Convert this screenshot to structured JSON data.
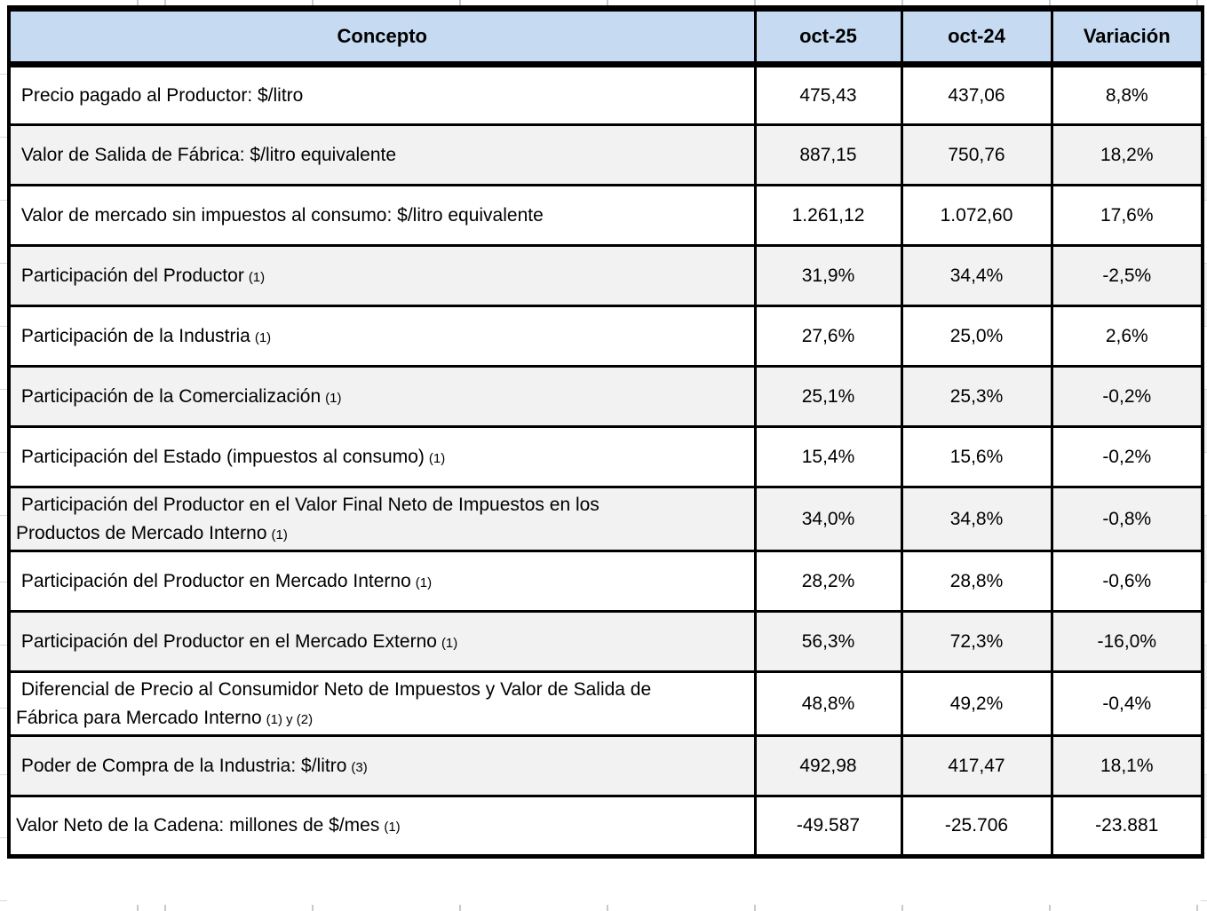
{
  "table": {
    "columns": {
      "concepto": "Concepto",
      "oct25": "oct-25",
      "oct24": "oct-24",
      "variacion": "Variación"
    },
    "rows": [
      {
        "concepto": " Precio pagado al Productor: $/litro",
        "note": "",
        "oct25": "475,43",
        "oct24": "437,06",
        "variacion": "8,8%"
      },
      {
        "concepto": " Valor de Salida de Fábrica: $/litro equivalente",
        "note": "",
        "oct25": "887,15",
        "oct24": "750,76",
        "variacion": "18,2%"
      },
      {
        "concepto": " Valor de mercado sin impuestos al consumo: $/litro equivalente",
        "note": "",
        "oct25": "1.261,12",
        "oct24": "1.072,60",
        "variacion": "17,6%"
      },
      {
        "concepto": " Participación del Productor",
        "note": "(1)",
        "oct25": "31,9%",
        "oct24": "34,4%",
        "variacion": "-2,5%"
      },
      {
        "concepto": " Participación de la Industria",
        "note": "(1)",
        "oct25": "27,6%",
        "oct24": "25,0%",
        "variacion": "2,6%"
      },
      {
        "concepto": " Participación de la Comercialización",
        "note": "(1)",
        "oct25": "25,1%",
        "oct24": "25,3%",
        "variacion": "-0,2%"
      },
      {
        "concepto": " Participación del Estado (impuestos al consumo)",
        "note": "(1)",
        "oct25": "15,4%",
        "oct24": "15,6%",
        "variacion": "-0,2%"
      },
      {
        "concepto": " Participación del Productor en el Valor Final Neto de Impuestos en los\nProductos de Mercado Interno",
        "note": "(1)",
        "oct25": "34,0%",
        "oct24": "34,8%",
        "variacion": "-0,8%"
      },
      {
        "concepto": " Participación del Productor en Mercado Interno",
        "note": "(1)",
        "oct25": "28,2%",
        "oct24": "28,8%",
        "variacion": "-0,6%"
      },
      {
        "concepto": " Participación del Productor en el Mercado Externo",
        "note": "(1)",
        "oct25": "56,3%",
        "oct24": "72,3%",
        "variacion": "-16,0%"
      },
      {
        "concepto": " Diferencial de Precio al Consumidor Neto de Impuestos y Valor de Salida de\nFábrica para Mercado Interno",
        "note": "(1) y (2)",
        "oct25": "48,8%",
        "oct24": "49,2%",
        "variacion": "-0,4%"
      },
      {
        "concepto": " Poder de Compra de la Industria: $/litro",
        "note": "(3)",
        "oct25": "492,98",
        "oct24": "417,47",
        "variacion": "18,1%"
      },
      {
        "concepto": "Valor Neto de la Cadena: millones de $/mes",
        "note": "(1)",
        "oct25": "-49.587",
        "oct24": "-25.706",
        "variacion": "-23.881"
      }
    ]
  },
  "colors": {
    "header_bg": "#c6dbf1",
    "row_alt_bg": "#f2f2f2",
    "border": "#000000",
    "gridline": "#c9c9c9"
  }
}
